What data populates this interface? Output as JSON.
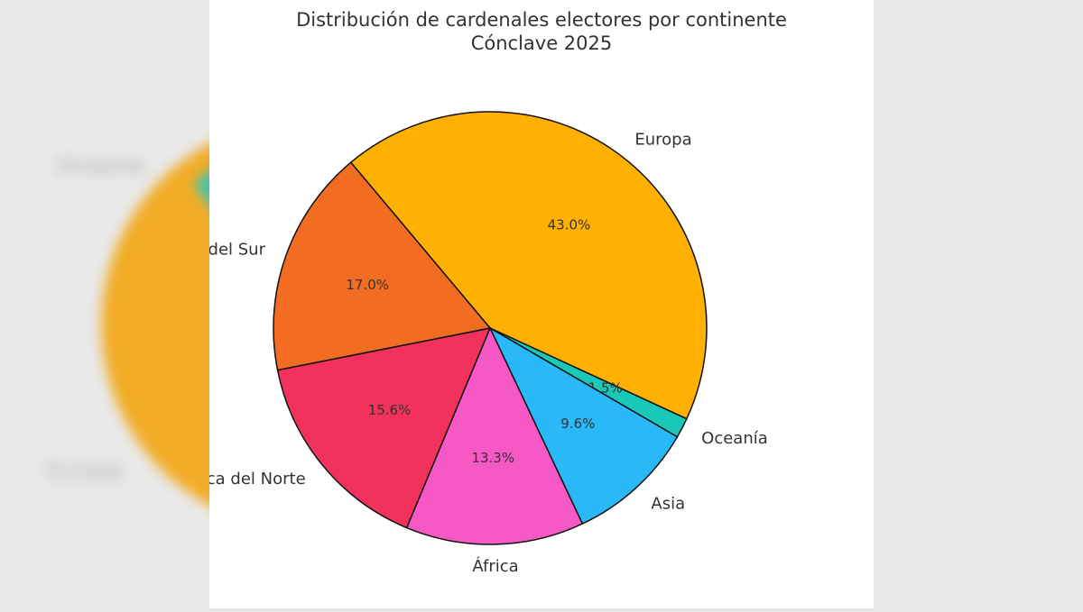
{
  "background": {
    "color": "#e9e9e9"
  },
  "chart_data": {
    "type": "pie",
    "title": "Distribución de cardenales electores por continente",
    "subtitle": "Cónclave 2025",
    "start_angle_deg": 130,
    "direction": "clockwise",
    "edge_color": "#111111",
    "slices": [
      {
        "label": "Europa",
        "value": 43.0,
        "pct_label": "43.0%",
        "color": "#ffb000"
      },
      {
        "label": "Oceanía",
        "value": 1.5,
        "pct_label": "1.5%",
        "color": "#1ac8b8"
      },
      {
        "label": "Asia",
        "value": 9.6,
        "pct_label": "9.6%",
        "color": "#29b9f9"
      },
      {
        "label": "África",
        "value": 13.3,
        "pct_label": "13.3%",
        "color": "#f658c5"
      },
      {
        "label": "América del Norte",
        "value": 15.6,
        "pct_label": "15.6%",
        "color": "#f2315c"
      },
      {
        "label": "América del Sur",
        "value": 17.0,
        "pct_label": "17.0%",
        "color": "#f26d22"
      }
    ]
  }
}
